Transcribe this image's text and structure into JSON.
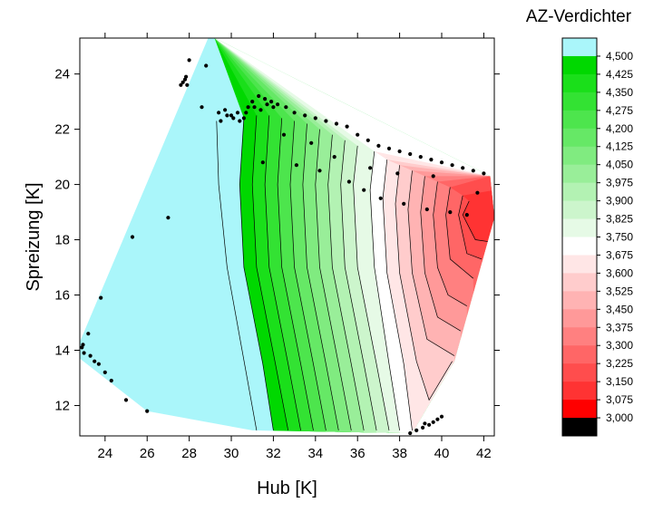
{
  "chart_data": {
    "type": "heatmap",
    "subtype": "contour",
    "xlabel": "Hub [K]",
    "ylabel": "Spreizung [K]",
    "xlim": [
      22.8,
      42.5
    ],
    "ylim": [
      10.9,
      25.3
    ],
    "xticks": [
      "24",
      "26",
      "28",
      "30",
      "32",
      "34",
      "36",
      "38",
      "40",
      "42"
    ],
    "yticks": [
      "12",
      "14",
      "16",
      "18",
      "20",
      "22",
      "24"
    ],
    "grid": false,
    "legend": {
      "title": "AZ-Verdichter",
      "placement": "right",
      "levels": [
        "4,500",
        "4,425",
        "4,350",
        "4,275",
        "4,200",
        "4,125",
        "4,050",
        "3,975",
        "3,900",
        "3,825",
        "3,750",
        "3,675",
        "3,600",
        "3,525",
        "3,450",
        "3,375",
        "3,300",
        "3,225",
        "3,150",
        "3,075",
        "3,000"
      ],
      "colors": [
        "#aaf6fa",
        "#00d800",
        "#1adf1a",
        "#33e233",
        "#4de54d",
        "#66e866",
        "#80eb80",
        "#99ee99",
        "#b3f2b3",
        "#ccf5cc",
        "#e6fae6",
        "#ffffff",
        "#ffe6e6",
        "#ffcccc",
        "#ffb3b3",
        "#ff9999",
        "#ff8080",
        "#ff6666",
        "#ff4d4d",
        "#ff3333",
        "#ff0000",
        "#000000"
      ]
    },
    "hull": [
      [
        28.9,
        25.3
      ],
      [
        29.2,
        25.3
      ],
      [
        42.3,
        20.3
      ],
      [
        42.5,
        18.8
      ],
      [
        40.6,
        13.6
      ],
      [
        38.6,
        11.0
      ],
      [
        31.0,
        11.1
      ],
      [
        26.0,
        11.8
      ],
      [
        22.8,
        13.7
      ],
      [
        22.8,
        14.3
      ]
    ],
    "bands": [
      {
        "top": [
          [
            29.2,
            25.3
          ],
          [
            42.3,
            20.3
          ]
        ],
        "bottom": [
          [
            29.3,
            22.3
          ],
          [
            29.4,
            20.0
          ],
          [
            29.8,
            17.0
          ],
          [
            31.2,
            11.1
          ]
        ],
        "color": "#aaf6fa"
      },
      {
        "top": [
          [
            29.2,
            25.3
          ],
          [
            42.3,
            20.3
          ]
        ],
        "bottom": [
          [
            30.6,
            22.4
          ],
          [
            30.4,
            20.0
          ],
          [
            30.6,
            17.0
          ],
          [
            31.5,
            13.5
          ],
          [
            32.0,
            11.1
          ]
        ],
        "color": "#00d800"
      },
      {
        "top": [
          [
            29.2,
            25.3
          ],
          [
            42.3,
            20.3
          ]
        ],
        "bottom": [
          [
            31.2,
            22.5
          ],
          [
            31.0,
            20.0
          ],
          [
            31.2,
            17.0
          ],
          [
            32.1,
            13.5
          ],
          [
            32.7,
            11.1
          ]
        ],
        "color": "#1adf1a"
      },
      {
        "top": [
          [
            29.2,
            25.3
          ],
          [
            42.3,
            20.3
          ]
        ],
        "bottom": [
          [
            31.8,
            22.5
          ],
          [
            31.6,
            20.0
          ],
          [
            31.8,
            17.0
          ],
          [
            32.7,
            13.5
          ],
          [
            33.3,
            11.1
          ]
        ],
        "color": "#33e233"
      },
      {
        "top": [
          [
            29.2,
            25.3
          ],
          [
            42.3,
            20.3
          ]
        ],
        "bottom": [
          [
            32.4,
            22.4
          ],
          [
            32.2,
            20.0
          ],
          [
            32.4,
            17.0
          ],
          [
            33.3,
            13.5
          ],
          [
            33.9,
            11.1
          ]
        ],
        "color": "#4de54d"
      },
      {
        "top": [
          [
            29.2,
            25.3
          ],
          [
            42.3,
            20.3
          ]
        ],
        "bottom": [
          [
            33.0,
            22.3
          ],
          [
            32.8,
            20.0
          ],
          [
            33.0,
            17.0
          ],
          [
            33.9,
            13.5
          ],
          [
            34.5,
            11.1
          ]
        ],
        "color": "#66e866"
      },
      {
        "top": [
          [
            29.2,
            25.3
          ],
          [
            42.3,
            20.3
          ]
        ],
        "bottom": [
          [
            33.6,
            22.2
          ],
          [
            33.4,
            20.0
          ],
          [
            33.6,
            17.0
          ],
          [
            34.5,
            13.5
          ],
          [
            35.1,
            11.1
          ]
        ],
        "color": "#80eb80"
      },
      {
        "top": [
          [
            29.2,
            25.3
          ],
          [
            42.3,
            20.3
          ]
        ],
        "bottom": [
          [
            34.2,
            22.0
          ],
          [
            34.0,
            20.0
          ],
          [
            34.2,
            17.0
          ],
          [
            35.1,
            13.5
          ],
          [
            35.7,
            11.1
          ]
        ],
        "color": "#99ee99"
      },
      {
        "top": [
          [
            29.2,
            25.3
          ],
          [
            42.3,
            20.3
          ]
        ],
        "bottom": [
          [
            34.8,
            21.8
          ],
          [
            34.6,
            20.0
          ],
          [
            34.8,
            17.0
          ],
          [
            35.7,
            13.5
          ],
          [
            36.3,
            11.1
          ]
        ],
        "color": "#b3f2b3"
      },
      {
        "top": [
          [
            29.2,
            25.3
          ],
          [
            42.3,
            20.3
          ]
        ],
        "bottom": [
          [
            35.4,
            21.6
          ],
          [
            35.2,
            20.0
          ],
          [
            35.4,
            17.0
          ],
          [
            36.3,
            13.5
          ],
          [
            36.9,
            11.1
          ]
        ],
        "color": "#ccf5cc"
      },
      {
        "top": [
          [
            29.2,
            25.3
          ],
          [
            42.3,
            20.3
          ]
        ],
        "bottom": [
          [
            36.0,
            21.4
          ],
          [
            35.8,
            20.0
          ],
          [
            36.0,
            17.0
          ],
          [
            36.9,
            13.5
          ],
          [
            37.5,
            11.1
          ]
        ],
        "color": "#e6fae6"
      },
      {
        "top": [
          [
            29.2,
            25.3
          ],
          [
            42.3,
            20.3
          ]
        ],
        "bottom": [
          [
            36.8,
            21.2
          ],
          [
            36.6,
            19.8
          ],
          [
            36.8,
            17.0
          ],
          [
            37.5,
            13.5
          ],
          [
            38.0,
            11.1
          ]
        ],
        "color": "#ffffff"
      },
      {
        "top": [
          [
            36.8,
            21.2
          ],
          [
            42.3,
            20.3
          ]
        ],
        "bottom": [
          [
            37.4,
            20.9
          ],
          [
            37.2,
            19.5
          ],
          [
            37.4,
            16.8
          ],
          [
            38.2,
            13.5
          ],
          [
            38.6,
            11.1
          ]
        ],
        "color": "#ffe6e6"
      },
      {
        "top": [
          [
            37.4,
            20.9
          ],
          [
            42.3,
            20.3
          ]
        ],
        "bottom": [
          [
            38.0,
            20.7
          ],
          [
            37.8,
            19.3
          ],
          [
            38.0,
            16.8
          ],
          [
            38.8,
            13.6
          ],
          [
            39.4,
            12.2
          ],
          [
            40.5,
            13.6
          ]
        ],
        "color": "#ffcccc"
      },
      {
        "top": [
          [
            38.0,
            20.7
          ],
          [
            42.3,
            20.3
          ]
        ],
        "bottom": [
          [
            38.6,
            20.5
          ],
          [
            38.4,
            19.1
          ],
          [
            38.6,
            16.8
          ],
          [
            39.3,
            14.4
          ],
          [
            40.6,
            13.8
          ]
        ],
        "color": "#ffb3b3"
      },
      {
        "top": [
          [
            38.6,
            20.5
          ],
          [
            42.3,
            20.3
          ]
        ],
        "bottom": [
          [
            39.2,
            20.3
          ],
          [
            39.0,
            19.0
          ],
          [
            39.2,
            16.8
          ],
          [
            39.8,
            15.2
          ],
          [
            40.9,
            14.7
          ]
        ],
        "color": "#ff9999"
      },
      {
        "top": [
          [
            39.2,
            20.3
          ],
          [
            42.3,
            20.3
          ]
        ],
        "bottom": [
          [
            39.8,
            20.1
          ],
          [
            39.6,
            18.9
          ],
          [
            39.8,
            17.0
          ],
          [
            40.3,
            16.0
          ],
          [
            41.2,
            15.6
          ]
        ],
        "color": "#ff8080"
      },
      {
        "top": [
          [
            39.8,
            20.1
          ],
          [
            42.3,
            20.3
          ]
        ],
        "bottom": [
          [
            40.4,
            19.9
          ],
          [
            40.2,
            18.9
          ],
          [
            40.4,
            17.3
          ],
          [
            41.5,
            16.6
          ]
        ],
        "color": "#ff6666"
      },
      {
        "top": [
          [
            40.4,
            19.9
          ],
          [
            42.3,
            20.3
          ]
        ],
        "bottom": [
          [
            41.0,
            19.6
          ],
          [
            40.8,
            18.9
          ],
          [
            41.2,
            17.5
          ],
          [
            41.9,
            17.3
          ]
        ],
        "color": "#ff4d4d"
      },
      {
        "top": [
          [
            41.0,
            19.6
          ],
          [
            42.5,
            19.8
          ]
        ],
        "bottom": [
          [
            41.3,
            19.4
          ],
          [
            41.0,
            18.9
          ],
          [
            41.6,
            18.0
          ],
          [
            42.5,
            17.9
          ]
        ],
        "color": "#ff3333"
      }
    ],
    "points": [
      [
        22.9,
        14.1
      ],
      [
        22.95,
        14.2
      ],
      [
        23.0,
        13.9
      ],
      [
        23.3,
        13.8
      ],
      [
        23.5,
        13.6
      ],
      [
        23.7,
        13.5
      ],
      [
        24.0,
        13.2
      ],
      [
        24.3,
        12.9
      ],
      [
        25.0,
        12.2
      ],
      [
        26.0,
        11.8
      ],
      [
        23.2,
        14.6
      ],
      [
        23.8,
        15.9
      ],
      [
        25.3,
        18.1
      ],
      [
        27.0,
        18.8
      ],
      [
        27.6,
        23.6
      ],
      [
        27.7,
        23.7
      ],
      [
        27.8,
        23.8
      ],
      [
        27.85,
        23.9
      ],
      [
        27.9,
        23.6
      ],
      [
        28.0,
        24.5
      ],
      [
        28.6,
        22.8
      ],
      [
        28.8,
        24.3
      ],
      [
        29.4,
        22.6
      ],
      [
        29.7,
        22.7
      ],
      [
        30.0,
        22.5
      ],
      [
        30.3,
        22.6
      ],
      [
        30.6,
        22.4
      ],
      [
        30.8,
        22.8
      ],
      [
        31.0,
        23.0
      ],
      [
        31.3,
        23.2
      ],
      [
        31.6,
        23.1
      ],
      [
        31.9,
        23.0
      ],
      [
        32.2,
        22.9
      ],
      [
        32.6,
        22.8
      ],
      [
        29.5,
        22.3
      ],
      [
        29.8,
        22.5
      ],
      [
        30.1,
        22.4
      ],
      [
        30.4,
        22.3
      ],
      [
        30.7,
        22.6
      ],
      [
        31.1,
        22.8
      ],
      [
        31.4,
        22.7
      ],
      [
        31.7,
        22.9
      ],
      [
        32.0,
        22.8
      ],
      [
        33.0,
        22.6
      ],
      [
        33.5,
        22.5
      ],
      [
        34.0,
        22.4
      ],
      [
        34.5,
        22.3
      ],
      [
        35.0,
        22.2
      ],
      [
        35.5,
        22.1
      ],
      [
        36.0,
        21.8
      ],
      [
        36.5,
        21.6
      ],
      [
        37.0,
        21.4
      ],
      [
        37.5,
        21.3
      ],
      [
        38.0,
        21.2
      ],
      [
        38.5,
        21.1
      ],
      [
        39.0,
        21.0
      ],
      [
        39.5,
        20.9
      ],
      [
        40.0,
        20.8
      ],
      [
        40.5,
        20.7
      ],
      [
        41.0,
        20.6
      ],
      [
        41.5,
        20.5
      ],
      [
        42.0,
        20.4
      ],
      [
        32.5,
        21.8
      ],
      [
        33.8,
        21.5
      ],
      [
        34.9,
        21.0
      ],
      [
        35.6,
        20.1
      ],
      [
        36.3,
        19.8
      ],
      [
        37.1,
        19.5
      ],
      [
        38.2,
        19.3
      ],
      [
        39.3,
        19.1
      ],
      [
        40.4,
        19.0
      ],
      [
        41.2,
        18.9
      ],
      [
        31.5,
        20.8
      ],
      [
        33.1,
        20.7
      ],
      [
        34.2,
        20.5
      ],
      [
        36.6,
        20.6
      ],
      [
        37.9,
        20.4
      ],
      [
        39.6,
        20.3
      ],
      [
        41.7,
        19.7
      ],
      [
        38.5,
        11.0
      ],
      [
        38.8,
        11.1
      ],
      [
        39.1,
        11.2
      ],
      [
        39.4,
        11.3
      ],
      [
        39.6,
        11.4
      ],
      [
        39.8,
        11.5
      ],
      [
        40.0,
        11.6
      ],
      [
        39.2,
        11.35
      ]
    ]
  }
}
